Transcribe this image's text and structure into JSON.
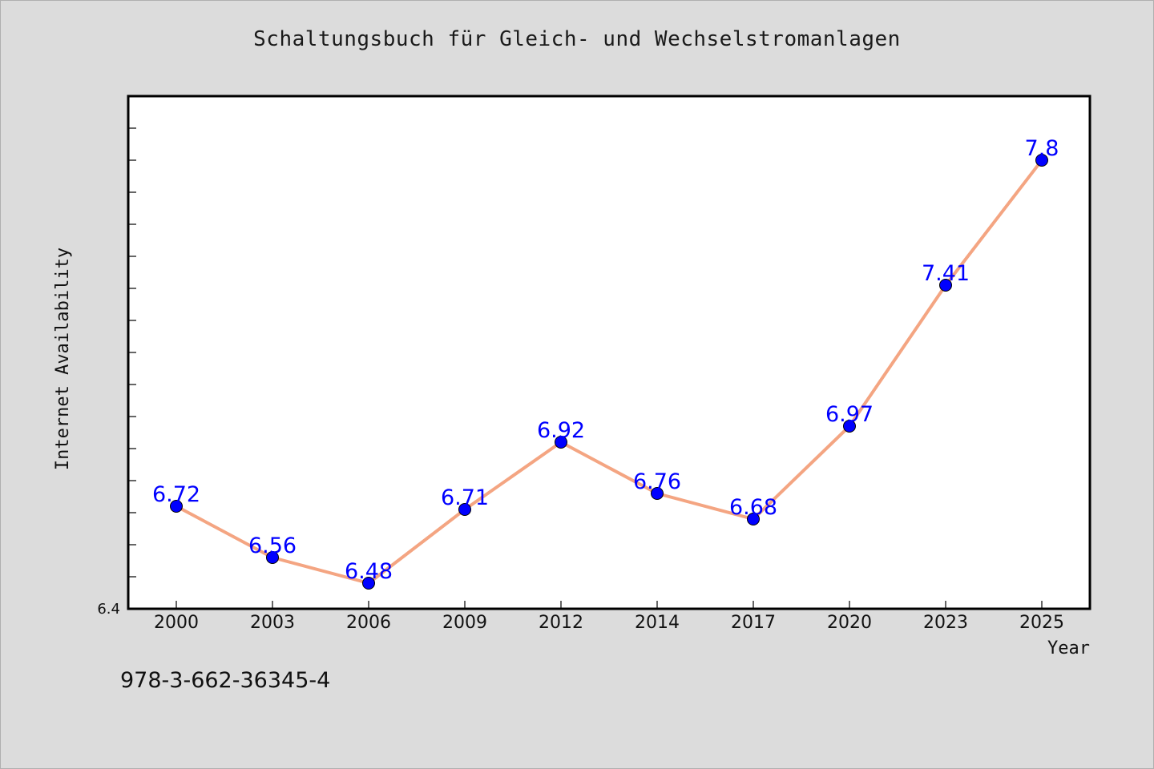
{
  "chart_data": {
    "type": "line",
    "title": "Schaltungsbuch für Gleich- und Wechselstromanlagen",
    "xlabel": "Year",
    "ylabel": "Internet Availability",
    "x": [
      "2000",
      "2003",
      "2006",
      "2009",
      "2012",
      "2014",
      "2017",
      "2020",
      "2023",
      "2025"
    ],
    "series": [
      {
        "values": [
          6.72,
          6.56,
          6.48,
          6.71,
          6.92,
          6.76,
          6.68,
          6.97,
          7.41,
          7.8
        ]
      }
    ],
    "data_labels": [
      "6.72",
      "6.56",
      "6.48",
      "6.71",
      "6.92",
      "6.76",
      "6.68",
      "6.97",
      "7.41",
      "7.8"
    ],
    "ylim": [
      6.4,
      8.0
    ],
    "y_tick_labels": [
      {
        "value": 6.4,
        "label": "6.4"
      }
    ],
    "y_minor_tick_step": 0.1,
    "grid": false,
    "legend": "none",
    "colors": {
      "line": "#f4a582",
      "marker": "#0000ff",
      "data_label": "#0000ff",
      "background": "#dcdcdc",
      "plot_background": "#ffffff"
    }
  },
  "footer": {
    "isbn": "978-3-662-36345-4"
  }
}
